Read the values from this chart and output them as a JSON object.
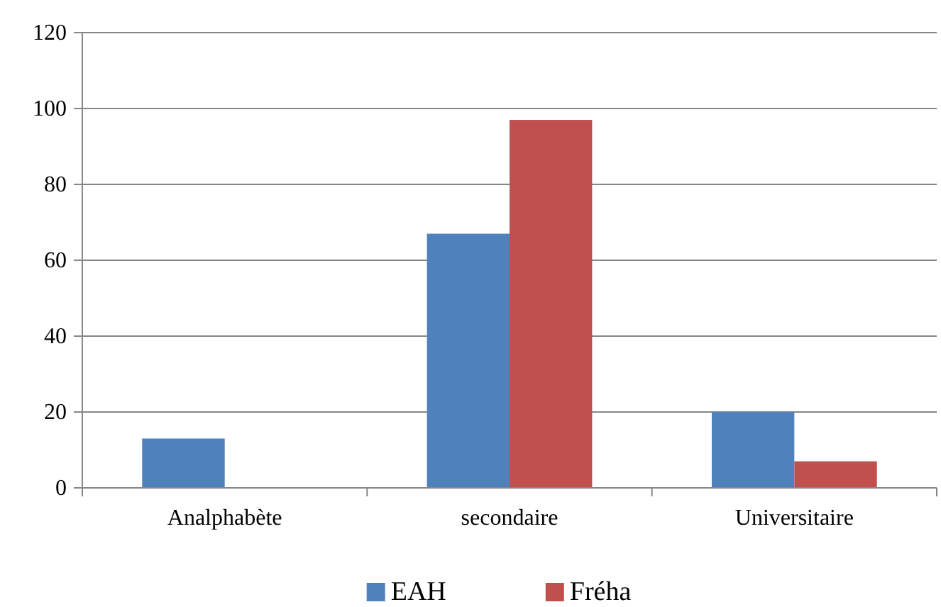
{
  "chart_data": {
    "type": "bar",
    "categories": [
      "Analphabète",
      "secondaire",
      "Universitaire"
    ],
    "series": [
      {
        "name": "EAH",
        "color": "#4f81bd",
        "values": [
          13,
          67,
          20
        ]
      },
      {
        "name": "Fréha",
        "color": "#c0504d",
        "values": [
          0,
          97,
          7
        ]
      }
    ],
    "ylim": [
      0,
      120
    ],
    "yticks": [
      0,
      20,
      40,
      60,
      80,
      100,
      120
    ],
    "grid": "y",
    "legend": "bottom"
  }
}
